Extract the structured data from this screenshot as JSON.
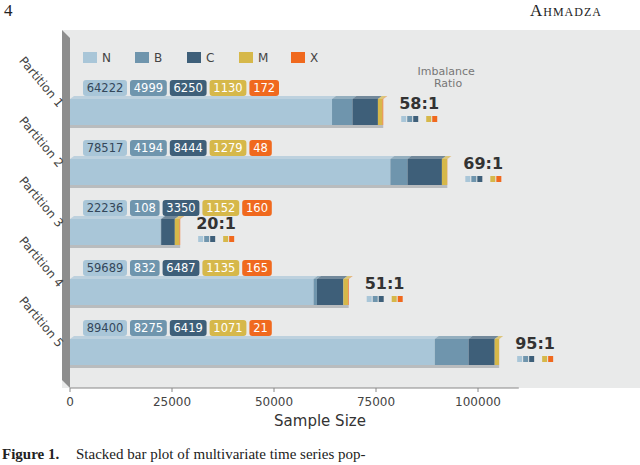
{
  "page": {
    "page_number": "4",
    "header": "Ahmadza",
    "caption_label": "Figure 1.",
    "caption": "Stacked bar plot of multivariate time series pop-"
  },
  "chart_data": {
    "type": "bar",
    "orientation": "horizontal",
    "stacked": true,
    "data_labels": true,
    "grid": false,
    "legend": "top-left",
    "categories": [
      "Partition 1",
      "Partition 2",
      "Partition 3",
      "Partition 4",
      "Partition 5"
    ],
    "series": [
      {
        "name": "N",
        "color": "#a9c6d8",
        "values": [
          64222,
          78517,
          22236,
          59689,
          89400
        ]
      },
      {
        "name": "B",
        "color": "#6f95ad",
        "values": [
          4999,
          4194,
          108,
          832,
          8275
        ]
      },
      {
        "name": "C",
        "color": "#3e5f79",
        "values": [
          6250,
          8444,
          3350,
          6487,
          6419
        ]
      },
      {
        "name": "M",
        "color": "#d6b84a",
        "values": [
          1130,
          1279,
          1152,
          1135,
          1071
        ]
      },
      {
        "name": "X",
        "color": "#f0691e",
        "values": [
          172,
          48,
          160,
          165,
          21
        ]
      }
    ],
    "annotation_title": "Imbalance Ratio",
    "annotations": [
      "58:1",
      "69:1",
      "20:1",
      "51:1",
      "95:1"
    ],
    "x_label": "Sample Size",
    "xlim": [
      0,
      110000
    ],
    "xticks": [
      0,
      25000,
      50000,
      75000,
      100000
    ]
  }
}
